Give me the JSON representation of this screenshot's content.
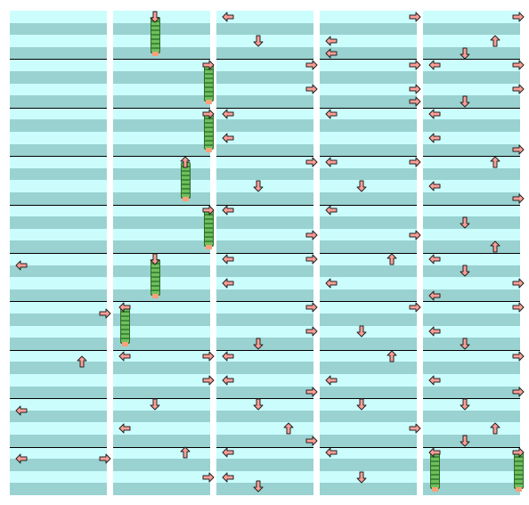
{
  "chart": {
    "columns": 5,
    "measures_per_column": 10,
    "rows_per_measure": 4,
    "colors": {
      "row_light": "#ccfdfd",
      "row_dark": "#99d2d0",
      "measure_line": "#000000",
      "arrow_fill": "#ff9e96",
      "arrow_stroke": "#222222",
      "hold_body": "#5aa84b",
      "hold_tail": "#f6a27a"
    },
    "lanes": [
      "left",
      "down",
      "up",
      "right"
    ],
    "notes": [
      {
        "col": 0,
        "beat": 20.5,
        "lane": "left"
      },
      {
        "col": 0,
        "beat": 24.5,
        "lane": "right"
      },
      {
        "col": 0,
        "beat": 28.5,
        "lane": "up"
      },
      {
        "col": 0,
        "beat": 32.5,
        "lane": "left"
      },
      {
        "col": 0,
        "beat": 36.5,
        "lane": "left"
      },
      {
        "col": 0,
        "beat": 36.5,
        "lane": "right"
      },
      {
        "col": 1,
        "beat": 0,
        "lane": "down",
        "hold_beats": 3
      },
      {
        "col": 1,
        "beat": 4,
        "lane": "right",
        "hold_beats": 3
      },
      {
        "col": 1,
        "beat": 8,
        "lane": "right",
        "hold_beats": 3
      },
      {
        "col": 1,
        "beat": 12,
        "lane": "up",
        "hold_beats": 3
      },
      {
        "col": 1,
        "beat": 16,
        "lane": "right",
        "hold_beats": 3
      },
      {
        "col": 1,
        "beat": 20,
        "lane": "down",
        "hold_beats": 3
      },
      {
        "col": 1,
        "beat": 24,
        "lane": "left",
        "hold_beats": 3
      },
      {
        "col": 1,
        "beat": 28,
        "lane": "right"
      },
      {
        "col": 1,
        "beat": 28,
        "lane": "left"
      },
      {
        "col": 1,
        "beat": 30,
        "lane": "right"
      },
      {
        "col": 1,
        "beat": 32,
        "lane": "down"
      },
      {
        "col": 1,
        "beat": 34,
        "lane": "left"
      },
      {
        "col": 1,
        "beat": 36,
        "lane": "up"
      },
      {
        "col": 1,
        "beat": 38,
        "lane": "right"
      },
      {
        "col": 2,
        "beat": 0,
        "lane": "left"
      },
      {
        "col": 2,
        "beat": 2,
        "lane": "down"
      },
      {
        "col": 2,
        "beat": 4,
        "lane": "right"
      },
      {
        "col": 2,
        "beat": 6,
        "lane": "right"
      },
      {
        "col": 2,
        "beat": 8,
        "lane": "left"
      },
      {
        "col": 2,
        "beat": 10,
        "lane": "left"
      },
      {
        "col": 2,
        "beat": 12,
        "lane": "right"
      },
      {
        "col": 2,
        "beat": 14,
        "lane": "down"
      },
      {
        "col": 2,
        "beat": 16,
        "lane": "left"
      },
      {
        "col": 2,
        "beat": 18,
        "lane": "right"
      },
      {
        "col": 2,
        "beat": 20,
        "lane": "right"
      },
      {
        "col": 2,
        "beat": 20,
        "lane": "left"
      },
      {
        "col": 2,
        "beat": 22,
        "lane": "left"
      },
      {
        "col": 2,
        "beat": 24,
        "lane": "right"
      },
      {
        "col": 2,
        "beat": 26,
        "lane": "right"
      },
      {
        "col": 2,
        "beat": 27,
        "lane": "down"
      },
      {
        "col": 2,
        "beat": 28,
        "lane": "left"
      },
      {
        "col": 2,
        "beat": 30,
        "lane": "left"
      },
      {
        "col": 2,
        "beat": 31,
        "lane": "right"
      },
      {
        "col": 2,
        "beat": 32,
        "lane": "down"
      },
      {
        "col": 2,
        "beat": 34,
        "lane": "up"
      },
      {
        "col": 2,
        "beat": 35,
        "lane": "right"
      },
      {
        "col": 2,
        "beat": 36,
        "lane": "left"
      },
      {
        "col": 2,
        "beat": 38,
        "lane": "left"
      },
      {
        "col": 2,
        "beat": 38.8,
        "lane": "down"
      },
      {
        "col": 3,
        "beat": 0,
        "lane": "right"
      },
      {
        "col": 3,
        "beat": 2,
        "lane": "left"
      },
      {
        "col": 3,
        "beat": 3,
        "lane": "left"
      },
      {
        "col": 3,
        "beat": 4,
        "lane": "right"
      },
      {
        "col": 3,
        "beat": 6,
        "lane": "right"
      },
      {
        "col": 3,
        "beat": 7,
        "lane": "right"
      },
      {
        "col": 3,
        "beat": 8,
        "lane": "left"
      },
      {
        "col": 3,
        "beat": 12,
        "lane": "left"
      },
      {
        "col": 3,
        "beat": 12,
        "lane": "right"
      },
      {
        "col": 3,
        "beat": 14,
        "lane": "down"
      },
      {
        "col": 3,
        "beat": 16,
        "lane": "left"
      },
      {
        "col": 3,
        "beat": 18,
        "lane": "right"
      },
      {
        "col": 3,
        "beat": 20,
        "lane": "up"
      },
      {
        "col": 3,
        "beat": 22,
        "lane": "left"
      },
      {
        "col": 3,
        "beat": 24,
        "lane": "right"
      },
      {
        "col": 3,
        "beat": 26,
        "lane": "down"
      },
      {
        "col": 3,
        "beat": 28,
        "lane": "up"
      },
      {
        "col": 3,
        "beat": 30,
        "lane": "left"
      },
      {
        "col": 3,
        "beat": 32,
        "lane": "down"
      },
      {
        "col": 3,
        "beat": 34,
        "lane": "right"
      },
      {
        "col": 3,
        "beat": 36,
        "lane": "left"
      },
      {
        "col": 3,
        "beat": 38,
        "lane": "down"
      },
      {
        "col": 4,
        "beat": 0,
        "lane": "right"
      },
      {
        "col": 4,
        "beat": 2,
        "lane": "up"
      },
      {
        "col": 4,
        "beat": 3,
        "lane": "down"
      },
      {
        "col": 4,
        "beat": 4,
        "lane": "left"
      },
      {
        "col": 4,
        "beat": 4,
        "lane": "right"
      },
      {
        "col": 4,
        "beat": 6,
        "lane": "right"
      },
      {
        "col": 4,
        "beat": 7,
        "lane": "down"
      },
      {
        "col": 4,
        "beat": 8,
        "lane": "left"
      },
      {
        "col": 4,
        "beat": 10,
        "lane": "left"
      },
      {
        "col": 4,
        "beat": 11,
        "lane": "right"
      },
      {
        "col": 4,
        "beat": 12,
        "lane": "up"
      },
      {
        "col": 4,
        "beat": 14,
        "lane": "left"
      },
      {
        "col": 4,
        "beat": 15,
        "lane": "right"
      },
      {
        "col": 4,
        "beat": 17,
        "lane": "down"
      },
      {
        "col": 4,
        "beat": 19,
        "lane": "up"
      },
      {
        "col": 4,
        "beat": 20,
        "lane": "left"
      },
      {
        "col": 4,
        "beat": 21,
        "lane": "down"
      },
      {
        "col": 4,
        "beat": 22,
        "lane": "right"
      },
      {
        "col": 4,
        "beat": 23,
        "lane": "left"
      },
      {
        "col": 4,
        "beat": 24,
        "lane": "right"
      },
      {
        "col": 4,
        "beat": 26,
        "lane": "left"
      },
      {
        "col": 4,
        "beat": 27,
        "lane": "down"
      },
      {
        "col": 4,
        "beat": 28,
        "lane": "right"
      },
      {
        "col": 4,
        "beat": 30,
        "lane": "left"
      },
      {
        "col": 4,
        "beat": 31,
        "lane": "right"
      },
      {
        "col": 4,
        "beat": 32,
        "lane": "down"
      },
      {
        "col": 4,
        "beat": 34,
        "lane": "up"
      },
      {
        "col": 4,
        "beat": 35,
        "lane": "down"
      },
      {
        "col": 4,
        "beat": 36,
        "lane": "left",
        "hold_beats": 3
      },
      {
        "col": 4,
        "beat": 36,
        "lane": "right",
        "hold_beats": 3
      }
    ]
  }
}
